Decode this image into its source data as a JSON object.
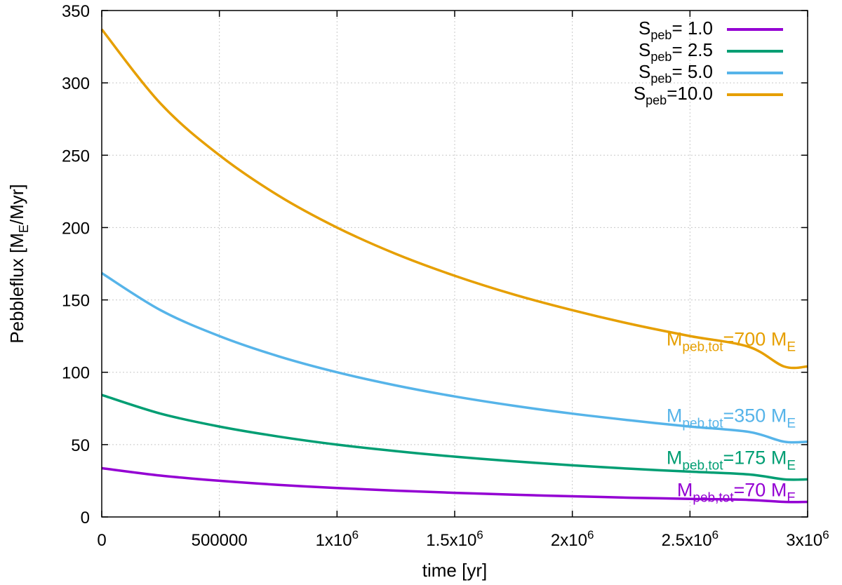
{
  "chart_data": {
    "type": "line",
    "title": "",
    "xlabel": "time [yr]",
    "ylabel": {
      "base": "Pebbleflux [M",
      "sub": "E",
      "tail": "/Myr]"
    },
    "xlim": [
      0,
      3000000
    ],
    "ylim": [
      0,
      350
    ],
    "xticks": [
      {
        "value": 0,
        "label": "0",
        "exp": ""
      },
      {
        "value": 500000,
        "label": "500000",
        "exp": ""
      },
      {
        "value": 1000000,
        "label": "1x10",
        "exp": "6"
      },
      {
        "value": 1500000,
        "label": "1.5x10",
        "exp": "6"
      },
      {
        "value": 2000000,
        "label": "2x10",
        "exp": "6"
      },
      {
        "value": 2500000,
        "label": "2.5x10",
        "exp": "6"
      },
      {
        "value": 3000000,
        "label": "3x10",
        "exp": "6"
      }
    ],
    "yticks": [
      {
        "value": 0,
        "label": "0"
      },
      {
        "value": 50,
        "label": "50"
      },
      {
        "value": 100,
        "label": "100"
      },
      {
        "value": 150,
        "label": "150"
      },
      {
        "value": 200,
        "label": "200"
      },
      {
        "value": 250,
        "label": "250"
      },
      {
        "value": 300,
        "label": "300"
      },
      {
        "value": 350,
        "label": "350"
      }
    ],
    "grid": true,
    "legend_position": "top-right",
    "x": [
      0,
      250000,
      500000,
      750000,
      1000000,
      1250000,
      1500000,
      1750000,
      2000000,
      2250000,
      2500000,
      2750000,
      2900000,
      3000000
    ],
    "series": [
      {
        "name": "S_peb=1.0",
        "legend_sub": "peb",
        "legend_value": "= 1.0",
        "color": "#9400d3",
        "values": [
          33.7,
          28.6,
          25.0,
          22.2,
          20.0,
          18.2,
          16.7,
          15.4,
          14.3,
          13.3,
          12.5,
          11.8,
          10.4,
          10.4
        ],
        "annotation": {
          "base": "M",
          "sub": "peb,tot",
          "mid": "=70 M",
          "sub2": "E",
          "anchor_value": 10.4
        }
      },
      {
        "name": "S_peb=2.5",
        "legend_sub": "peb",
        "legend_value": "= 2.5",
        "color": "#009e73",
        "values": [
          84.3,
          71.4,
          62.5,
          55.6,
          50.0,
          45.5,
          41.7,
          38.5,
          35.7,
          33.3,
          31.3,
          29.4,
          26.0,
          26.0
        ],
        "annotation": {
          "base": "M",
          "sub": "peb,tot",
          "mid": "=175 M",
          "sub2": "E",
          "anchor_value": 26.0
        }
      },
      {
        "name": "S_peb=5.0",
        "legend_sub": "peb",
        "legend_value": "= 5.0",
        "color": "#56b4e9",
        "values": [
          168.5,
          142.9,
          125.0,
          111.1,
          100.0,
          90.9,
          83.3,
          76.9,
          71.4,
          66.7,
          62.5,
          58.8,
          52.0,
          52.0
        ],
        "annotation": {
          "base": "M",
          "sub": "peb,tot",
          "mid": "=350 M",
          "sub2": "E",
          "anchor_value": 52.0
        }
      },
      {
        "name": "S_peb=10.0",
        "legend_sub": "peb",
        "legend_value": "=10.0",
        "color": "#e69f00",
        "values": [
          337.0,
          285.7,
          250.0,
          222.2,
          200.0,
          181.8,
          166.7,
          153.8,
          142.9,
          133.3,
          125.0,
          117.6,
          104.0,
          104.0
        ],
        "annotation": {
          "base": "M",
          "sub": "peb,tot",
          "mid": "=700 M",
          "sub2": "E",
          "anchor_value": 104.0
        }
      }
    ]
  }
}
